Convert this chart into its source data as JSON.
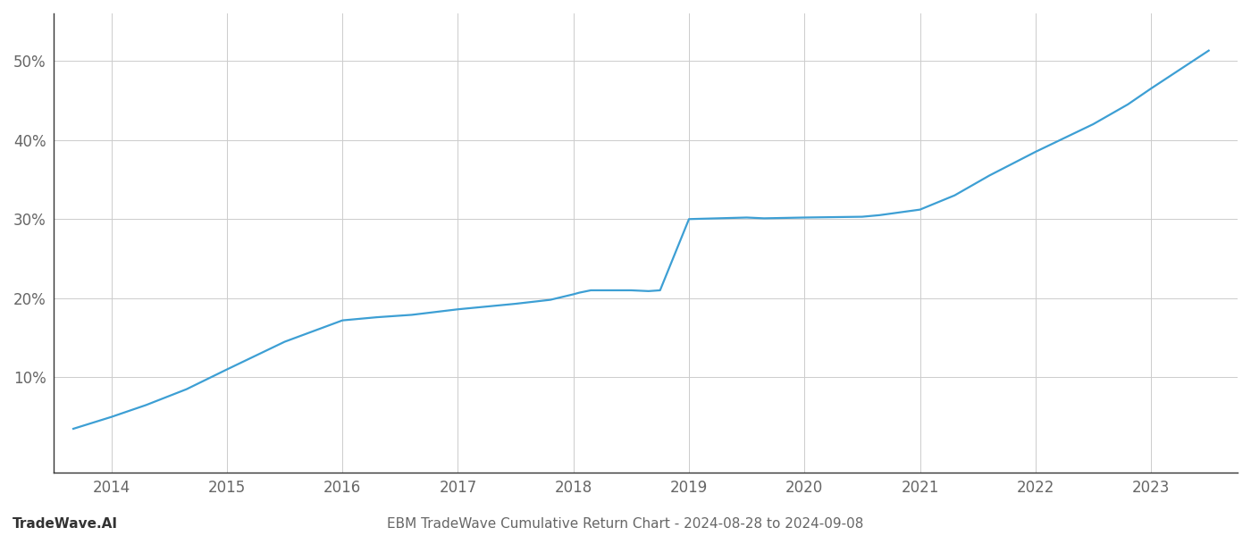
{
  "x": [
    2013.67,
    2014.0,
    2014.3,
    2014.65,
    2015.0,
    2015.5,
    2016.0,
    2016.3,
    2016.6,
    2017.0,
    2017.5,
    2017.8,
    2018.0,
    2018.05,
    2018.15,
    2018.5,
    2018.65,
    2018.75,
    2019.0,
    2019.5,
    2019.65,
    2020.0,
    2020.5,
    2020.65,
    2021.0,
    2021.3,
    2021.6,
    2022.0,
    2022.5,
    2022.8,
    2023.0,
    2023.5
  ],
  "y": [
    3.5,
    5.0,
    6.5,
    8.5,
    11.0,
    14.5,
    17.2,
    17.6,
    17.9,
    18.6,
    19.3,
    19.8,
    20.5,
    20.7,
    21.0,
    21.0,
    20.9,
    21.0,
    30.0,
    30.2,
    30.1,
    30.2,
    30.3,
    30.5,
    31.2,
    33.0,
    35.5,
    38.5,
    42.0,
    44.5,
    46.5,
    51.3
  ],
  "line_color": "#3d9fd4",
  "line_width": 1.6,
  "title": "EBM TradeWave Cumulative Return Chart - 2024-08-28 to 2024-09-08",
  "watermark": "TradeWave.AI",
  "yticks": [
    10,
    20,
    30,
    40,
    50
  ],
  "xticks": [
    2014,
    2015,
    2016,
    2017,
    2018,
    2019,
    2020,
    2021,
    2022,
    2023
  ],
  "xlim": [
    2013.5,
    2023.75
  ],
  "ylim": [
    -2,
    56
  ],
  "grid_color": "#cccccc",
  "bg_color": "#ffffff",
  "title_fontsize": 11,
  "watermark_fontsize": 11,
  "tick_fontsize": 12,
  "spine_color": "#333333"
}
